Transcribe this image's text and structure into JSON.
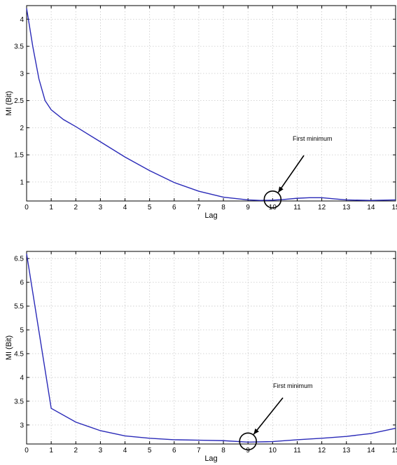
{
  "chart_data": [
    {
      "type": "line",
      "title": "",
      "xlabel": "Lag",
      "ylabel": "MI (Bit)",
      "xlim": [
        0,
        15
      ],
      "ylim": [
        0.65,
        4.25
      ],
      "xticks": [
        "0",
        "1",
        "2",
        "3",
        "4",
        "5",
        "6",
        "7",
        "8",
        "9",
        "10",
        "11",
        "12",
        "13",
        "14",
        "15"
      ],
      "yticks": [
        "1",
        "1.5",
        "2",
        "2.5",
        "3",
        "3.5",
        "4"
      ],
      "grid": true,
      "series": [
        {
          "color": "#2a2ab8",
          "x": [
            0,
            0.25,
            0.5,
            0.75,
            1,
            1.5,
            2,
            3,
            4,
            5,
            6,
            7,
            8,
            9,
            9.5,
            10,
            10.5,
            11,
            11.5,
            12,
            12.5,
            13,
            14,
            15
          ],
          "y": [
            4.2,
            3.5,
            2.9,
            2.5,
            2.33,
            2.15,
            2.02,
            1.74,
            1.46,
            1.21,
            0.99,
            0.83,
            0.72,
            0.67,
            0.66,
            0.665,
            0.68,
            0.7,
            0.71,
            0.71,
            0.69,
            0.67,
            0.66,
            0.67
          ]
        }
      ],
      "annotation": {
        "text": "First minimum",
        "x": 10,
        "y": 0.665
      }
    },
    {
      "type": "line",
      "title": "",
      "xlabel": "Lag",
      "ylabel": "MI (Bit)",
      "xlim": [
        0,
        15
      ],
      "ylim": [
        2.6,
        6.65
      ],
      "xticks": [
        "0",
        "1",
        "2",
        "3",
        "4",
        "5",
        "6",
        "7",
        "8",
        "9",
        "10",
        "11",
        "12",
        "13",
        "14",
        "15"
      ],
      "yticks": [
        "3",
        "3.5",
        "4",
        "4.5",
        "5",
        "5.5",
        "6",
        "6.5"
      ],
      "grid": true,
      "series": [
        {
          "color": "#2a2ab8",
          "x": [
            0,
            1,
            2,
            3,
            4,
            5,
            6,
            7,
            8,
            9,
            10,
            11,
            12,
            13,
            14,
            15
          ],
          "y": [
            6.6,
            3.35,
            3.06,
            2.88,
            2.77,
            2.72,
            2.69,
            2.68,
            2.67,
            2.64,
            2.65,
            2.69,
            2.72,
            2.76,
            2.82,
            2.93
          ]
        }
      ],
      "annotation": {
        "text": "First minimum",
        "x": 9,
        "y": 2.64
      }
    }
  ]
}
